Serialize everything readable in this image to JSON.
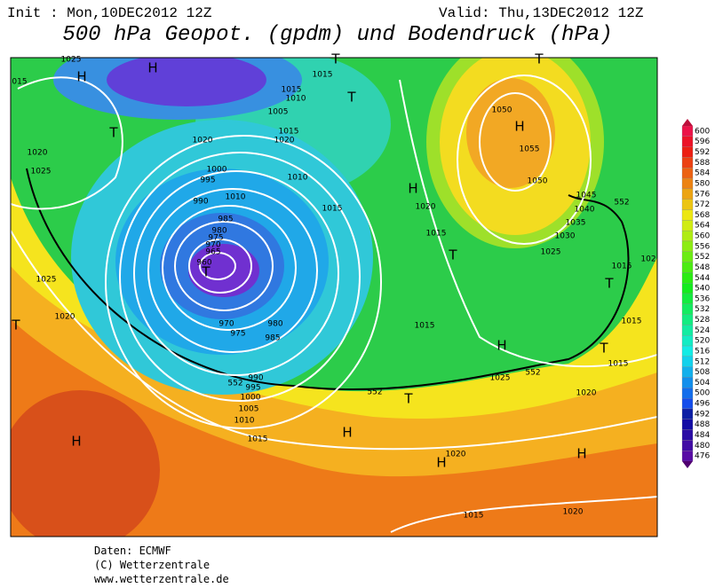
{
  "header": {
    "init": "Init : Mon,10DEC2012 12Z",
    "valid": "Valid: Thu,13DEC2012 12Z",
    "title": "500 hPa Geopot. (gpdm) und Bodendruck (hPa)"
  },
  "legend": {
    "labels": [
      "600",
      "596",
      "592",
      "588",
      "584",
      "580",
      "576",
      "572",
      "568",
      "564",
      "560",
      "556",
      "552",
      "548",
      "544",
      "540",
      "536",
      "532",
      "528",
      "524",
      "520",
      "516",
      "512",
      "508",
      "504",
      "500",
      "496",
      "492",
      "488",
      "484",
      "480",
      "476"
    ]
  },
  "map": {
    "labels": [
      "H",
      "H",
      "T",
      "015",
      "1025",
      "T",
      "1015",
      "1015",
      "1010",
      "1005",
      "1020",
      "1015",
      "1020",
      "T",
      "1020",
      "1025",
      "1000",
      "995",
      "990",
      "1010",
      "1010",
      "1015",
      "985",
      "980",
      "975",
      "970",
      "965",
      "960",
      "T",
      "H",
      "1020",
      "1015",
      "T",
      "1025",
      "1020",
      "T",
      "970",
      "975",
      "980",
      "985",
      "990",
      "995",
      "1000",
      "1005",
      "1010",
      "1015",
      "1015",
      "H",
      "1025",
      "T",
      "H",
      "H",
      "H",
      "1020",
      "H",
      "1020",
      "1015",
      "T",
      "1015",
      "T",
      "1015",
      "102",
      "1025",
      "1030",
      "1035",
      "1040",
      "1045",
      "1050",
      "1055",
      "H",
      "1050",
      "T",
      "1015",
      "1020",
      "552",
      "552",
      "552",
      "552"
    ]
  },
  "footer": [
    "Daten: ECMWF",
    "(C) Wetterzentrale",
    "www.wetterzentrale.de"
  ]
}
